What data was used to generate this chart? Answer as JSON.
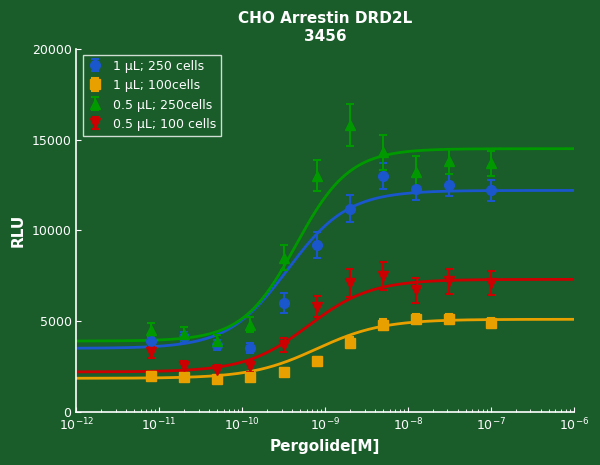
{
  "title_line1": "CHO Arrestin DRD2L",
  "title_line2": "3456",
  "xlabel": "Pergolide[M]",
  "ylabel": "RLU",
  "xlim_log": [
    -12,
    -6
  ],
  "ylim": [
    0,
    20000
  ],
  "yticks": [
    0,
    5000,
    10000,
    15000,
    20000
  ],
  "plot_bg_color": "#1a5c2a",
  "fig_bg_color": "#1a5c2a",
  "series": [
    {
      "label": "1 μL; 250 cells",
      "color": "#1a56cc",
      "marker": "o",
      "x_log": [
        -11.1,
        -10.7,
        -10.3,
        -9.9,
        -9.5,
        -9.1,
        -8.7,
        -8.3,
        -7.9,
        -7.5,
        -7.0
      ],
      "y": [
        3900,
        4100,
        3700,
        3500,
        6000,
        9200,
        11200,
        13000,
        12300,
        12500,
        12200
      ],
      "yerr": [
        350,
        320,
        280,
        280,
        550,
        700,
        750,
        700,
        650,
        580,
        580
      ],
      "sigmoid_bottom": 3500,
      "sigmoid_top": 12200,
      "sigmoid_ec50_log": -9.45,
      "sigmoid_hillslope": 1.2
    },
    {
      "label": "1 μL; 100cells",
      "color": "#e8a000",
      "marker": "s",
      "x_log": [
        -11.1,
        -10.7,
        -10.3,
        -9.9,
        -9.5,
        -9.1,
        -8.7,
        -8.3,
        -7.9,
        -7.5,
        -7.0
      ],
      "y": [
        2000,
        1900,
        1800,
        1900,
        2200,
        2800,
        3800,
        4800,
        5100,
        5100,
        4900
      ],
      "yerr": [
        180,
        180,
        180,
        180,
        200,
        250,
        300,
        300,
        280,
        280,
        280
      ],
      "sigmoid_bottom": 1850,
      "sigmoid_top": 5100,
      "sigmoid_ec50_log": -9.1,
      "sigmoid_hillslope": 1.1
    },
    {
      "label": "0.5 μL; 250cells",
      "color": "#009900",
      "marker": "^",
      "x_log": [
        -11.1,
        -10.7,
        -10.3,
        -9.9,
        -9.5,
        -9.1,
        -8.7,
        -8.3,
        -7.9,
        -7.5,
        -7.0
      ],
      "y": [
        4500,
        4300,
        3900,
        4800,
        8500,
        13000,
        15800,
        14300,
        13200,
        13800,
        13700
      ],
      "yerr": [
        380,
        380,
        330,
        420,
        680,
        850,
        1150,
        980,
        870,
        680,
        680
      ],
      "sigmoid_bottom": 3900,
      "sigmoid_top": 14500,
      "sigmoid_ec50_log": -9.35,
      "sigmoid_hillslope": 1.35
    },
    {
      "label": "0.5 μL; 100 cells",
      "color": "#cc0000",
      "marker": "v",
      "x_log": [
        -11.1,
        -10.7,
        -10.3,
        -9.9,
        -9.5,
        -9.1,
        -8.7,
        -8.3,
        -7.9,
        -7.5,
        -7.0
      ],
      "y": [
        3300,
        2500,
        2300,
        2500,
        3700,
        5800,
        7100,
        7500,
        6700,
        7200,
        7100
      ],
      "yerr": [
        330,
        280,
        270,
        280,
        380,
        580,
        750,
        780,
        680,
        680,
        680
      ],
      "sigmoid_bottom": 2200,
      "sigmoid_top": 7300,
      "sigmoid_ec50_log": -9.2,
      "sigmoid_hillslope": 1.15
    }
  ]
}
